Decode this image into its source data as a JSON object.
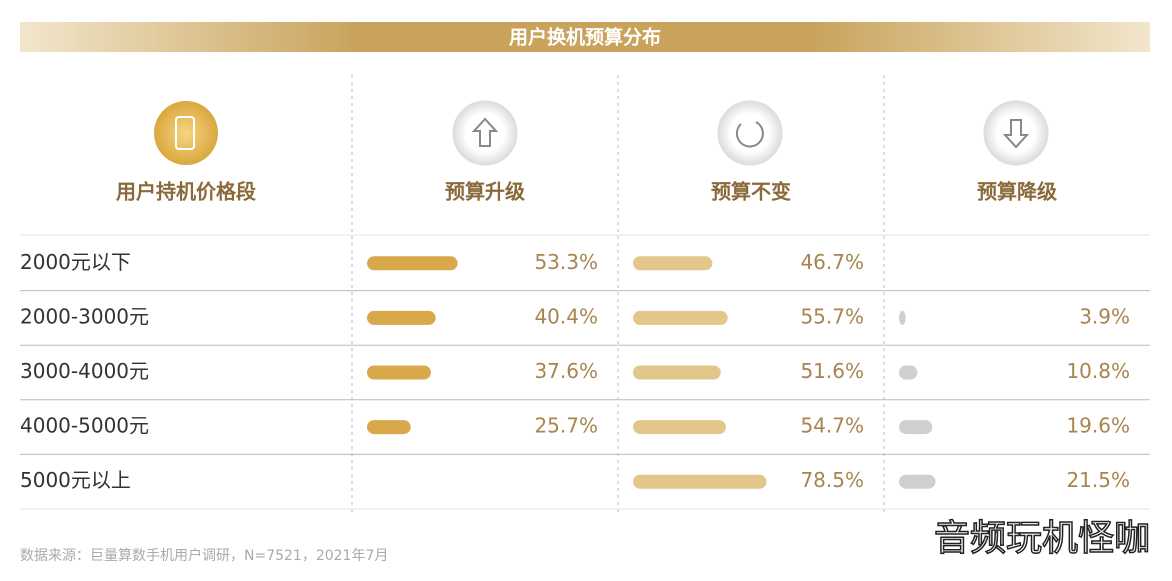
{
  "chart_data": {
    "type": "bar-table",
    "title": "用户换机预算分布",
    "category_label": "用户持机价格段",
    "categories": [
      "2000元以下",
      "2000-3000元",
      "3000-4000元",
      "4000-5000元",
      "5000元以上"
    ],
    "series": [
      {
        "name": "预算升级",
        "color": "#d9a84a",
        "values": [
          53.3,
          40.4,
          37.6,
          25.7,
          null
        ],
        "value_labels": [
          "53.3%",
          "40.4%",
          "37.6%",
          "25.7%",
          null
        ]
      },
      {
        "name": "预算不变",
        "color": "#e3c68a",
        "values": [
          46.7,
          55.7,
          51.6,
          54.7,
          78.5
        ],
        "value_labels": [
          "46.7%",
          "55.7%",
          "51.6%",
          "54.7%",
          "78.5%"
        ]
      },
      {
        "name": "预算降级",
        "color": "#cfcfcf",
        "values": [
          null,
          3.9,
          10.8,
          19.6,
          21.5
        ],
        "value_labels": [
          null,
          "3.9%",
          "10.8%",
          "19.6%",
          "21.5%"
        ]
      }
    ],
    "source": "数据来源：巨量算数手机用户调研，N=7521，2021年7月",
    "watermark": "音频玩机怪咖"
  }
}
